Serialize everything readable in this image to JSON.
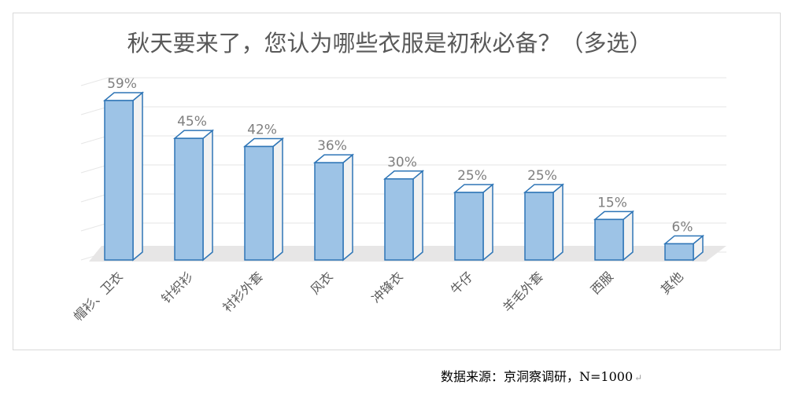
{
  "chart_data": {
    "type": "bar",
    "title": "秋天要来了，您认为哪些衣服是初秋必备？（多选）",
    "categories": [
      "帽衫、卫衣",
      "针织衫",
      "衬衫外套",
      "风衣",
      "冲锋衣",
      "牛仔",
      "羊毛外套",
      "西服",
      "其他"
    ],
    "values": [
      59,
      45,
      42,
      36,
      30,
      25,
      25,
      15,
      6
    ],
    "value_labels": [
      "59%",
      "45%",
      "42%",
      "36%",
      "30%",
      "25%",
      "25%",
      "15%",
      "6%"
    ],
    "ylim": [
      0,
      60
    ],
    "grid": true,
    "style": "3d-column",
    "colors": {
      "bar_front": "#9dc3e6",
      "bar_edge": "#2e75b6",
      "bar_side": "#f2f2f2",
      "floor": "#e7e6e6"
    }
  },
  "source": "数据来源：京洞察调研，N=1000"
}
